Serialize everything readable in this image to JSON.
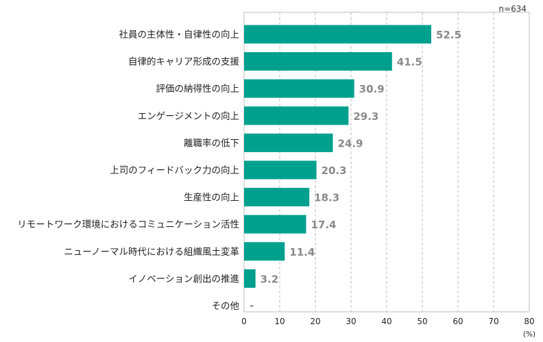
{
  "chart_data": {
    "type": "bar",
    "orientation": "horizontal",
    "note": "n=634",
    "categories": [
      "社員の主体性・自律性の向上",
      "自律的キャリア形成の支援",
      "評価の納得性の向上",
      "エンゲージメントの向上",
      "離職率の低下",
      "上司のフィードバック力の向上",
      "生産性の向上",
      "リモートワーク環境におけるコミュニケーション活性",
      "ニューノーマル時代における組織風土変革",
      "イノベーション創出の推進",
      "その他"
    ],
    "values": [
      52.5,
      41.5,
      30.9,
      29.3,
      24.9,
      20.3,
      18.3,
      17.4,
      11.4,
      3.2,
      null
    ],
    "value_labels": [
      "52.5",
      "41.5",
      "30.9",
      "29.3",
      "24.9",
      "20.3",
      "18.3",
      "17.4",
      "11.4",
      "3.2",
      "-"
    ],
    "xlim": [
      0,
      80
    ],
    "xticks": [
      "0",
      "10",
      "20",
      "30",
      "40",
      "50",
      "60",
      "70",
      "80"
    ],
    "xunit": "(%)",
    "grid": "vertical dashed",
    "bar_color": "#00a08f",
    "label_color": "#8a8a8a"
  }
}
